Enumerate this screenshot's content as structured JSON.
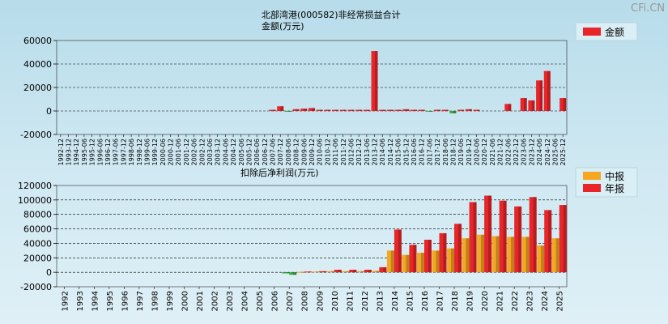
{
  "watermark": "CFi.CN",
  "chart_data": [
    {
      "type": "bar",
      "title": "北部湾港(000582)非经常损益合计",
      "subtitle": "金额(万元)",
      "ylabel": "金额(万元)",
      "ylim": [
        -20000,
        60000
      ],
      "yticks": [
        60000,
        40000,
        20000,
        0,
        -20000
      ],
      "grid": true,
      "legend": {
        "position": "top-right",
        "entries": [
          {
            "name": "金额",
            "color": "#e8262a"
          }
        ]
      },
      "categories": [
        "1992-12",
        "1993-12",
        "1994-12",
        "1995-06",
        "1995-12",
        "1996-06",
        "1996-12",
        "1997-06",
        "1997-12",
        "1998-06",
        "1998-12",
        "1999-06",
        "1999-12",
        "2000-06",
        "2000-12",
        "2001-06",
        "2001-12",
        "2002-06",
        "2002-12",
        "2003-06",
        "2003-12",
        "2004-06",
        "2004-12",
        "2005-06",
        "2005-12",
        "2006-06",
        "2006-12",
        "2007-06",
        "2007-12",
        "2008-06",
        "2008-12",
        "2009-06",
        "2009-12",
        "2010-06",
        "2010-12",
        "2011-06",
        "2011-12",
        "2012-06",
        "2012-12",
        "2013-06",
        "2013-12",
        "2014-06",
        "2014-12",
        "2015-06",
        "2015-12",
        "2016-06",
        "2016-12",
        "2017-06",
        "2017-12",
        "2018-06",
        "2018-12",
        "2019-06",
        "2019-12",
        "2020-06",
        "2020-12",
        "2021-06",
        "2021-12",
        "2022-06",
        "2022-12",
        "2023-06",
        "2023-12",
        "2024-06",
        "2024-12",
        "2025-06",
        "2025-12"
      ],
      "series": [
        {
          "name": "金额",
          "color": "#e8262a",
          "negative_color": "#3aa844",
          "values": [
            0,
            0,
            0,
            0,
            0,
            0,
            0,
            0,
            0,
            0,
            0,
            0,
            0,
            0,
            0,
            0,
            0,
            0,
            0,
            0,
            0,
            0,
            0,
            0,
            0,
            0,
            0,
            1000,
            4000,
            -500,
            1500,
            2000,
            2500,
            1000,
            1000,
            1000,
            1000,
            1000,
            1000,
            1000,
            51000,
            1000,
            1000,
            1000,
            1500,
            1000,
            1000,
            -300,
            1000,
            1000,
            -2000,
            1000,
            1500,
            1000,
            0,
            0,
            0,
            6000,
            0,
            11000,
            9000,
            26000,
            34000,
            0,
            11000
          ]
        }
      ]
    },
    {
      "type": "bar",
      "title": "扣除后净利润(万元)",
      "ylabel": "万元",
      "ylim": [
        -20000,
        120000
      ],
      "yticks": [
        120000,
        100000,
        80000,
        60000,
        40000,
        20000,
        0,
        -20000
      ],
      "grid": true,
      "legend": {
        "position": "top-right",
        "entries": [
          {
            "name": "中报",
            "color": "#f5a623"
          },
          {
            "name": "年报",
            "color": "#e8262a"
          }
        ]
      },
      "categories": [
        "1992",
        "1993",
        "1994",
        "1995",
        "1996",
        "1997",
        "1998",
        "1999",
        "2000",
        "2001",
        "2002",
        "2003",
        "2004",
        "2005",
        "2006",
        "2007",
        "2008",
        "2009",
        "2010",
        "2011",
        "2012",
        "2013",
        "2014",
        "2015",
        "2016",
        "2017",
        "2018",
        "2019",
        "2020",
        "2021",
        "2022",
        "2023",
        "2024",
        "2025"
      ],
      "series": [
        {
          "name": "中报",
          "color": "#f5a623",
          "negative_color": "#3aa844",
          "values": [
            0,
            0,
            0,
            0,
            0,
            0,
            0,
            0,
            0,
            0,
            0,
            0,
            0,
            0,
            0,
            -1500,
            500,
            1000,
            1500,
            1500,
            1500,
            2000,
            30000,
            24000,
            27000,
            30000,
            33000,
            47000,
            52000,
            50000,
            49000,
            49000,
            37000,
            47000
          ]
        },
        {
          "name": "年报",
          "color": "#e8262a",
          "negative_color": "#3aa844",
          "values": [
            0,
            0,
            0,
            0,
            0,
            0,
            0,
            0,
            0,
            0,
            0,
            0,
            0,
            0,
            0,
            -3500,
            1000,
            1500,
            3500,
            3500,
            3500,
            7000,
            59000,
            38000,
            45000,
            54000,
            67000,
            97000,
            106000,
            99000,
            91000,
            104000,
            86000,
            93000
          ]
        }
      ]
    }
  ]
}
